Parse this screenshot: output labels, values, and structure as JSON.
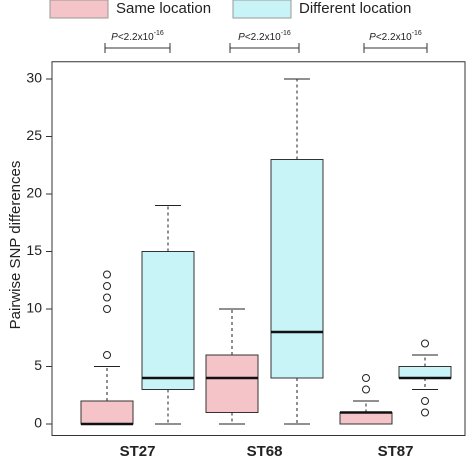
{
  "chart_data": {
    "type": "box",
    "ylabel": "Pairwise SNP differences",
    "categories": [
      "ST27",
      "ST68",
      "ST87"
    ],
    "ylim": [
      -1,
      31.5
    ],
    "yticks": [
      0,
      5,
      10,
      15,
      20,
      25,
      30
    ],
    "legend": "top",
    "series": [
      {
        "name": "Same location",
        "color": "#f4c4c8",
        "boxes": [
          {
            "min": 0,
            "q1": 0,
            "median": 0,
            "q3": 2,
            "max": 5,
            "outliers": [
              6,
              10,
              11,
              12,
              13
            ]
          },
          {
            "min": 0,
            "q1": 1,
            "median": 4,
            "q3": 6,
            "max": 10,
            "outliers": []
          },
          {
            "min": 0,
            "q1": 0,
            "median": 1,
            "q3": 1,
            "max": 2,
            "outliers": [
              3,
              4
            ]
          }
        ]
      },
      {
        "name": "Different location",
        "color": "#c8f4f8",
        "boxes": [
          {
            "min": 0,
            "q1": 3,
            "median": 4,
            "q3": 15,
            "max": 19,
            "outliers": []
          },
          {
            "min": 0,
            "q1": 4,
            "median": 8,
            "q3": 23,
            "max": 30,
            "outliers": []
          },
          {
            "min": 3,
            "q1": 4,
            "median": 4,
            "q3": 5,
            "max": 6,
            "outliers": [
              1,
              2,
              7
            ]
          }
        ]
      }
    ],
    "annotations": [
      {
        "italic": "P",
        "text": "<2.2x10",
        "exponent": "-16"
      },
      {
        "italic": "P",
        "text": "<2.2x10",
        "exponent": "-16"
      },
      {
        "italic": "P",
        "text": "<2.2x10",
        "exponent": "-16"
      }
    ]
  }
}
